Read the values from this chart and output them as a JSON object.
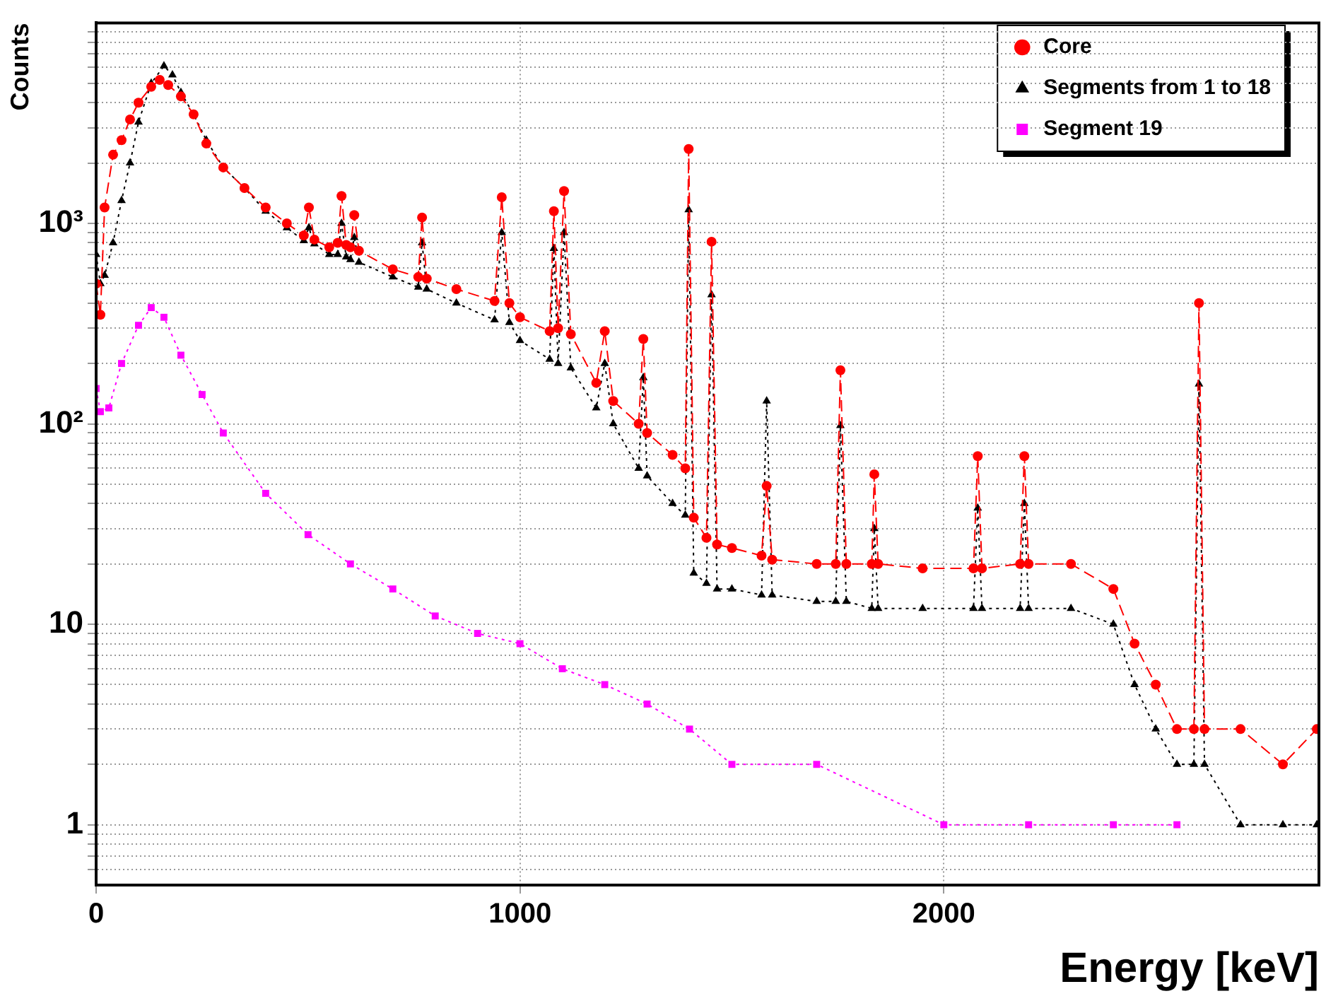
{
  "chart_data": {
    "type": "line",
    "xlabel": "Energy [keV]",
    "ylabel": "Counts",
    "log": "y",
    "grid": true,
    "legend": "top right",
    "xlim": [
      0,
      2885
    ],
    "xticks": [
      0,
      1000,
      2000
    ],
    "ylim": [
      0.5,
      10000
    ],
    "yticks": [
      {
        "value": 0.6,
        "label": null
      },
      {
        "value": 0.7,
        "label": null
      },
      {
        "value": 0.8,
        "label": null
      },
      {
        "value": 0.9,
        "label": null
      },
      1,
      {
        "value": 2,
        "label": null
      },
      {
        "value": 3,
        "label": null
      },
      {
        "value": 4,
        "label": null
      },
      {
        "value": 5,
        "label": null
      },
      {
        "value": 6,
        "label": null
      },
      {
        "value": 7,
        "label": null
      },
      {
        "value": 8,
        "label": null
      },
      {
        "value": 9,
        "label": null
      },
      10,
      {
        "value": 20,
        "label": null
      },
      {
        "value": 30,
        "label": null
      },
      {
        "value": 40,
        "label": null
      },
      {
        "value": 50,
        "label": null
      },
      {
        "value": 60,
        "label": null
      },
      {
        "value": 70,
        "label": null
      },
      {
        "value": 80,
        "label": null
      },
      {
        "value": 90,
        "label": null
      },
      {
        "value": 100,
        "label": "10²"
      },
      {
        "value": 200,
        "label": null
      },
      {
        "value": 300,
        "label": null
      },
      {
        "value": 400,
        "label": null
      },
      {
        "value": 500,
        "label": null
      },
      {
        "value": 600,
        "label": null
      },
      {
        "value": 700,
        "label": null
      },
      {
        "value": 800,
        "label": null
      },
      {
        "value": 900,
        "label": null
      },
      {
        "value": 1000,
        "label": "10³"
      },
      {
        "value": 2000,
        "label": null
      },
      {
        "value": 3000,
        "label": null
      },
      {
        "value": 4000,
        "label": null
      },
      {
        "value": 5000,
        "label": null
      },
      {
        "value": 6000,
        "label": null
      },
      {
        "value": 7000,
        "label": null
      },
      {
        "value": 8000,
        "label": null
      },
      {
        "value": 9000,
        "label": null
      }
    ],
    "series": [
      {
        "name": "Core",
        "color": "#ff0000",
        "marker": "circle",
        "line_style": "dashed",
        "x": [
          0,
          10,
          20,
          40,
          60,
          80,
          100,
          130,
          150,
          170,
          200,
          230,
          260,
          300,
          350,
          400,
          450,
          490,
          502,
          515,
          550,
          570,
          579,
          590,
          600,
          609,
          620,
          700,
          760,
          769,
          780,
          850,
          940,
          957,
          975,
          1000,
          1070,
          1080,
          1090,
          1104,
          1120,
          1180,
          1200,
          1220,
          1280,
          1291,
          1300,
          1360,
          1390,
          1398,
          1410,
          1440,
          1452,
          1465,
          1500,
          1570,
          1582,
          1595,
          1700,
          1745,
          1756,
          1770,
          1830,
          1836,
          1845,
          1950,
          2070,
          2080,
          2090,
          2180,
          2190,
          2200,
          2300,
          2400,
          2450,
          2500,
          2550,
          2590,
          2602,
          2615,
          2700,
          2800,
          2880
        ],
        "values": [
          500,
          350,
          1200,
          2200,
          2600,
          3300,
          4000,
          4800,
          5200,
          4900,
          4300,
          3500,
          2500,
          1900,
          1500,
          1200,
          1000,
          870,
          1200,
          830,
          760,
          800,
          1370,
          780,
          760,
          1100,
          730,
          590,
          540,
          1070,
          530,
          470,
          410,
          1350,
          400,
          340,
          290,
          1150,
          300,
          1450,
          280,
          160,
          290,
          130,
          100,
          265,
          90,
          70,
          60,
          2350,
          34,
          27,
          810,
          25,
          24,
          22,
          49,
          21,
          20,
          20,
          185,
          20,
          20,
          56,
          20,
          19,
          19,
          69,
          19,
          20,
          69,
          20,
          20,
          15,
          8,
          5,
          3,
          3,
          400,
          3,
          3,
          2,
          3
        ]
      },
      {
        "name": "Segments from 1 to 18",
        "color": "#000000",
        "marker": "triangle",
        "line_style": "dotted",
        "x": [
          0,
          10,
          20,
          40,
          60,
          80,
          100,
          130,
          160,
          180,
          200,
          230,
          260,
          300,
          350,
          400,
          450,
          490,
          502,
          515,
          550,
          570,
          579,
          590,
          600,
          609,
          620,
          700,
          760,
          769,
          780,
          850,
          940,
          957,
          975,
          1000,
          1070,
          1080,
          1090,
          1104,
          1120,
          1180,
          1200,
          1220,
          1280,
          1291,
          1300,
          1360,
          1390,
          1398,
          1410,
          1440,
          1452,
          1465,
          1500,
          1570,
          1582,
          1595,
          1700,
          1745,
          1756,
          1770,
          1830,
          1836,
          1845,
          1950,
          2070,
          2080,
          2090,
          2180,
          2190,
          2200,
          2300,
          2400,
          2450,
          2500,
          2550,
          2590,
          2602,
          2615,
          2700,
          2800,
          2880
        ],
        "values": [
          700,
          500,
          550,
          800,
          1300,
          2000,
          3200,
          5000,
          6100,
          5500,
          4500,
          3500,
          2600,
          1900,
          1500,
          1150,
          950,
          820,
          950,
          790,
          700,
          700,
          1000,
          680,
          660,
          850,
          640,
          540,
          480,
          800,
          470,
          400,
          330,
          900,
          320,
          260,
          210,
          750,
          200,
          900,
          190,
          120,
          200,
          100,
          60,
          170,
          55,
          40,
          35,
          1170,
          18,
          16,
          440,
          15,
          15,
          14,
          130,
          14,
          13,
          13,
          98,
          13,
          12,
          30,
          12,
          12,
          12,
          38,
          12,
          12,
          40,
          12,
          12,
          10,
          5,
          3,
          2,
          2,
          158,
          2,
          1,
          1,
          1
        ]
      },
      {
        "name": "Segment 19",
        "color": "#ff00ff",
        "marker": "square",
        "line_style": "dotted",
        "x": [
          0,
          10,
          30,
          60,
          100,
          130,
          160,
          200,
          250,
          300,
          400,
          500,
          600,
          700,
          800,
          900,
          1000,
          1100,
          1200,
          1300,
          1400,
          1500,
          1700,
          2000,
          2200,
          2400,
          2550
        ],
        "values": [
          150,
          115,
          120,
          200,
          310,
          380,
          340,
          220,
          140,
          90,
          45,
          28,
          20,
          15,
          11,
          9,
          8,
          6,
          5,
          4,
          3,
          2,
          2,
          1,
          1,
          1,
          1
        ]
      }
    ]
  }
}
